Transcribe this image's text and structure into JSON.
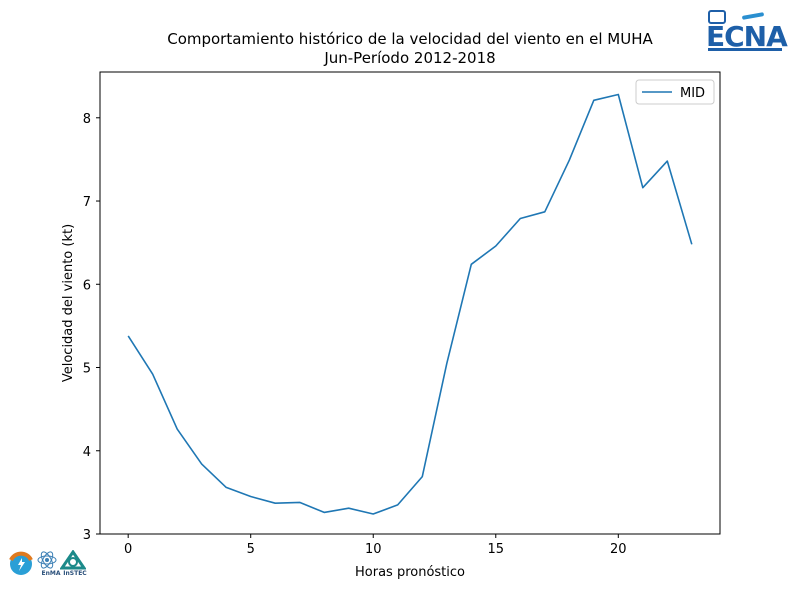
{
  "chart_data": {
    "type": "line",
    "title": "Comportamiento histórico de la velocidad del viento en el MUHA",
    "subtitle": "Jun-Período 2012-2018",
    "xlabel": "Horas pronóstico",
    "ylabel": "Velocidad del viento (kt)",
    "xlim": [
      -1.15,
      24.15
    ],
    "ylim": [
      3.0,
      8.55
    ],
    "xticks": [
      0,
      5,
      10,
      15,
      20
    ],
    "yticks": [
      3,
      4,
      5,
      6,
      7,
      8
    ],
    "grid": false,
    "legend_position": "top-right",
    "series": [
      {
        "name": "MID",
        "color": "#1f77b4",
        "x": [
          0,
          1,
          2,
          3,
          4,
          5,
          6,
          7,
          8,
          9,
          10,
          11,
          12,
          13,
          14,
          15,
          16,
          17,
          18,
          19,
          20,
          21,
          22,
          23
        ],
        "y": [
          5.38,
          4.92,
          4.26,
          3.84,
          3.56,
          3.45,
          3.37,
          3.38,
          3.26,
          3.31,
          3.24,
          3.35,
          3.69,
          5.05,
          6.24,
          6.46,
          6.79,
          6.87,
          7.49,
          8.21,
          8.28,
          7.16,
          7.48,
          6.48
        ]
      }
    ]
  },
  "logos": {
    "top_right": "ECNA",
    "bottom_left": [
      "EnMA",
      "InSTEC"
    ]
  }
}
